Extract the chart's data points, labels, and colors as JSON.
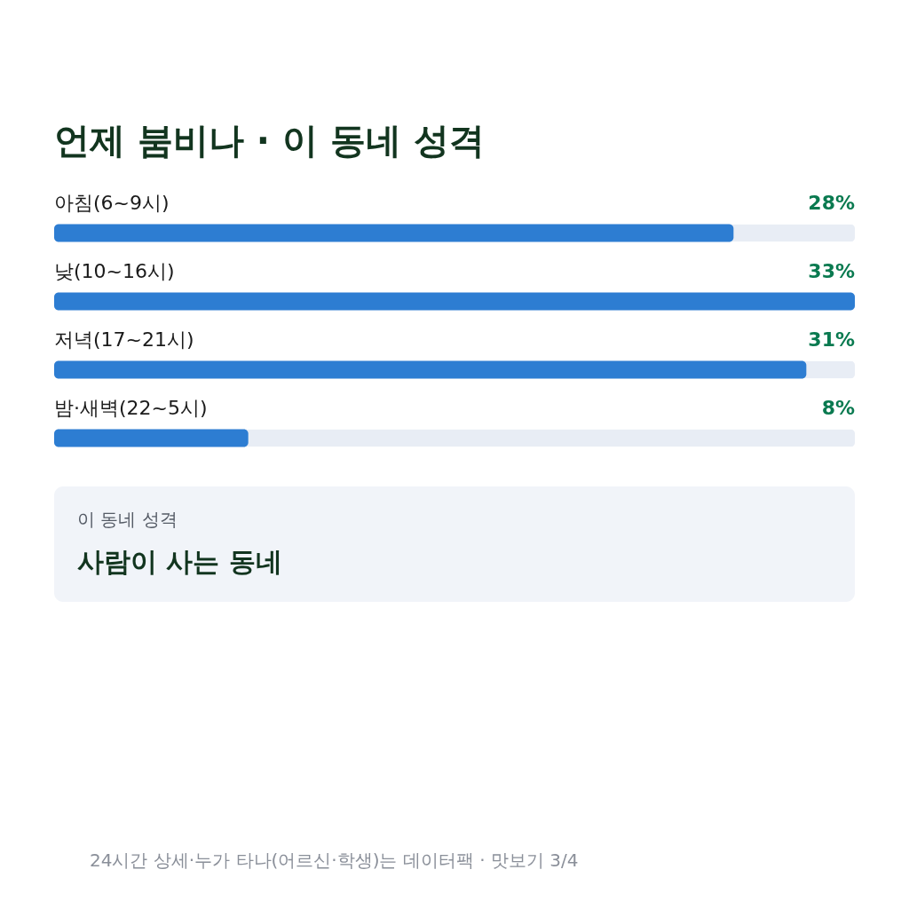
{
  "chart_data": {
    "type": "bar",
    "orientation": "horizontal",
    "title": "언제 붐비나 · 이 동네 성격",
    "categories": [
      "아침(6~9시)",
      "낮(10~16시)",
      "저녁(17~21시)",
      "밤·새벽(22~5시)"
    ],
    "values": [
      28,
      33,
      31,
      8
    ],
    "value_labels": [
      "28%",
      "33%",
      "31%",
      "8%"
    ],
    "color": "#2d7dd2",
    "xlim": [
      0,
      33
    ],
    "annotations": [
      "이 동네 성격",
      "사람이 사는 동네",
      "24시간 상세·누가 타나(어르신·학생)는 데이터팩 · 맛보기 3/4"
    ]
  }
}
